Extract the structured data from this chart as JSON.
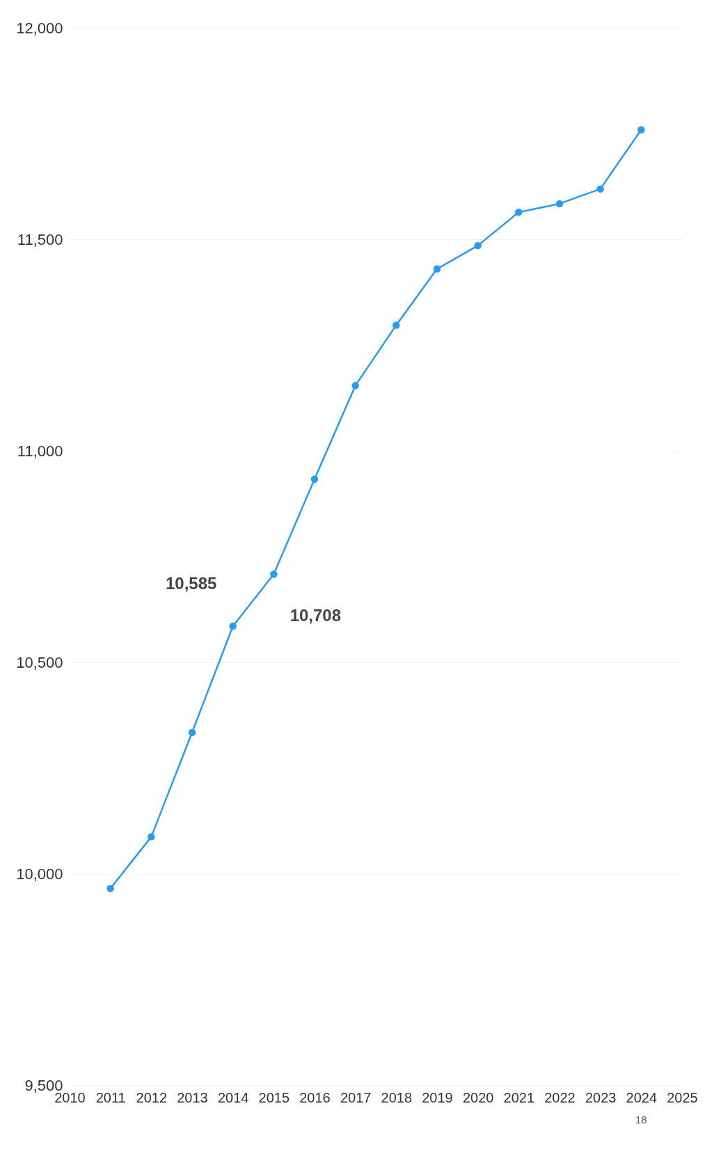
{
  "chart_data": {
    "type": "line",
    "x": [
      2011,
      2012,
      2013,
      2014,
      2015,
      2016,
      2017,
      2018,
      2019,
      2020,
      2021,
      2022,
      2023,
      2024
    ],
    "series": [
      {
        "color": "#2d9be8",
        "values": [
          9965,
          10087,
          10334,
          10585,
          10708,
          10933,
          11154,
          11297,
          11430,
          11485,
          11564,
          11584,
          11619,
          11759
        ]
      }
    ],
    "xlim": [
      2010,
      2025
    ],
    "xticks": [
      2010,
      2011,
      2012,
      2013,
      2014,
      2015,
      2016,
      2017,
      2018,
      2019,
      2020,
      2021,
      2022,
      2023,
      2024,
      2025
    ],
    "ylim": [
      9500,
      12000
    ],
    "yticks": [
      {
        "value": 9500,
        "label": "9,500"
      },
      {
        "value": 10000,
        "label": "10,000"
      },
      {
        "value": 10500,
        "label": "10,500"
      },
      {
        "value": 11000,
        "label": "11,000"
      },
      {
        "value": 11500,
        "label": "11,500"
      },
      {
        "value": 12000,
        "label": "12,000"
      }
    ],
    "grid": "y",
    "marker": "circle",
    "annotations": [
      {
        "text": "10,585",
        "x": 2014,
        "y": 10585
      },
      {
        "text": "10,708",
        "x": 2015,
        "y": 10708
      },
      "18"
    ]
  }
}
